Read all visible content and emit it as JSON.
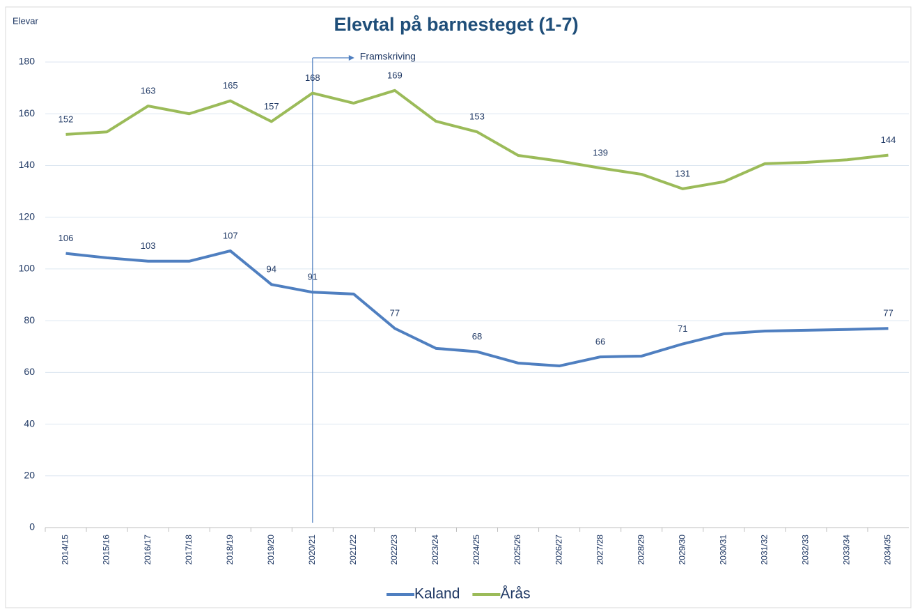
{
  "chart_data": {
    "type": "line",
    "title": "Elevtal på barnesteget (1-7)",
    "y_label": "Elevar",
    "categories": [
      "2014/15",
      "2015/16",
      "2016/17",
      "2017/18",
      "2018/19",
      "2019/20",
      "2020/21",
      "2021/22",
      "2022/23",
      "2023/24",
      "2024/25",
      "2025/26",
      "2026/27",
      "2027/28",
      "2028/29",
      "2029/30",
      "2030/31",
      "2031/32",
      "2032/33",
      "2033/34",
      "2034/35"
    ],
    "series": [
      {
        "name": "Kaland",
        "color": "#4f7fc0",
        "values": [
          106,
          104.3,
          103,
          103,
          107,
          94,
          91,
          90.3,
          77,
          69.3,
          68,
          63.6,
          62.5,
          66,
          66.3,
          71,
          74.9,
          76,
          76.3,
          76.6,
          77
        ],
        "value_labels": [
          "106",
          null,
          "103",
          null,
          "107",
          "94",
          "91",
          null,
          "77",
          null,
          "68",
          null,
          null,
          "66",
          null,
          "71",
          null,
          null,
          null,
          null,
          "77"
        ]
      },
      {
        "name": "Årås",
        "color": "#9bbb59",
        "values": [
          152,
          153,
          163,
          160,
          165,
          157,
          168,
          164.1,
          169,
          157.1,
          153,
          143.9,
          141.7,
          139,
          136.6,
          131,
          133.7,
          140.7,
          141.2,
          142.2,
          144
        ],
        "value_labels": [
          "152",
          null,
          "163",
          null,
          "165",
          "157",
          "168",
          null,
          "169",
          null,
          "153",
          null,
          null,
          "139",
          null,
          "131",
          null,
          null,
          null,
          null,
          "144"
        ]
      }
    ],
    "annotation": {
      "text": "Framskriving",
      "at": "2020/21"
    },
    "ylim": [
      0,
      180
    ],
    "yticks": [
      0,
      20,
      40,
      60,
      80,
      100,
      120,
      140,
      160,
      180
    ],
    "grid": true,
    "legend": "bottom"
  }
}
